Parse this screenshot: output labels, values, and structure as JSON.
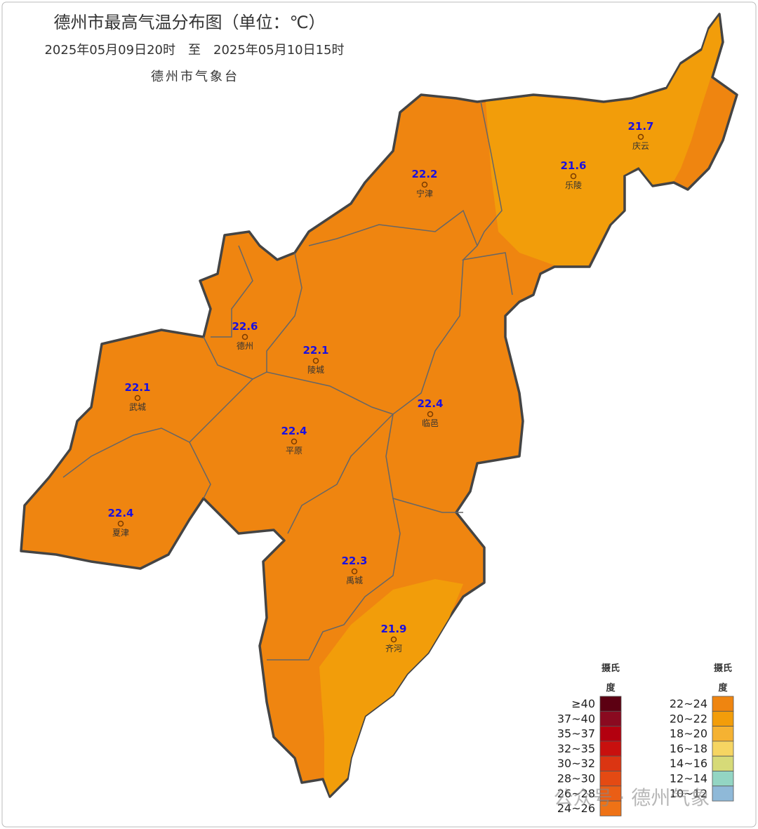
{
  "header": {
    "title": "德州市最高气温分布图（单位：℃）",
    "subtitle": "2025年05月09日20时　至　2025年05月10日15时",
    "issuer": "德州市气象台"
  },
  "stations": [
    {
      "value": "21.7",
      "name": "庆云"
    },
    {
      "value": "22.2",
      "name": "宁津"
    },
    {
      "value": "21.6",
      "name": "乐陵"
    },
    {
      "value": "22.6",
      "name": "德州"
    },
    {
      "value": "22.1",
      "name": "陵城"
    },
    {
      "value": "22.1",
      "name": "武城"
    },
    {
      "value": "22.4",
      "name": "临邑"
    },
    {
      "value": "22.4",
      "name": "平原"
    },
    {
      "value": "22.4",
      "name": "夏津"
    },
    {
      "value": "22.3",
      "name": "禹城"
    },
    {
      "value": "21.9",
      "name": "齐河"
    }
  ],
  "legend": {
    "left": {
      "unit": [
        "摄氏",
        "度"
      ],
      "entries": [
        {
          "label": "≥40",
          "color": "#5c0012"
        },
        {
          "label": "37~40",
          "color": "#8a0a20"
        },
        {
          "label": "35~37",
          "color": "#b3000f"
        },
        {
          "label": "32~35",
          "color": "#c8100e"
        },
        {
          "label": "30~32",
          "color": "#db3512"
        },
        {
          "label": "28~30",
          "color": "#e44a13"
        },
        {
          "label": "26~28",
          "color": "#ea5e15"
        },
        {
          "label": "24~26",
          "color": "#ee7216"
        }
      ]
    },
    "right": {
      "unit": [
        "摄氏",
        "度"
      ],
      "entries": [
        {
          "label": "22~24",
          "color": "#ef8510"
        },
        {
          "label": "20~22",
          "color": "#f29d0a"
        },
        {
          "label": "18~20",
          "color": "#f5b232"
        },
        {
          "label": "16~18",
          "color": "#f6d562"
        },
        {
          "label": "14~16",
          "color": "#d6da78"
        },
        {
          "label": "12~14",
          "color": "#93d5c3"
        },
        {
          "label": "10~12",
          "color": "#8fb9d8"
        }
      ]
    }
  },
  "watermark": "公众号 · 德州气象"
}
